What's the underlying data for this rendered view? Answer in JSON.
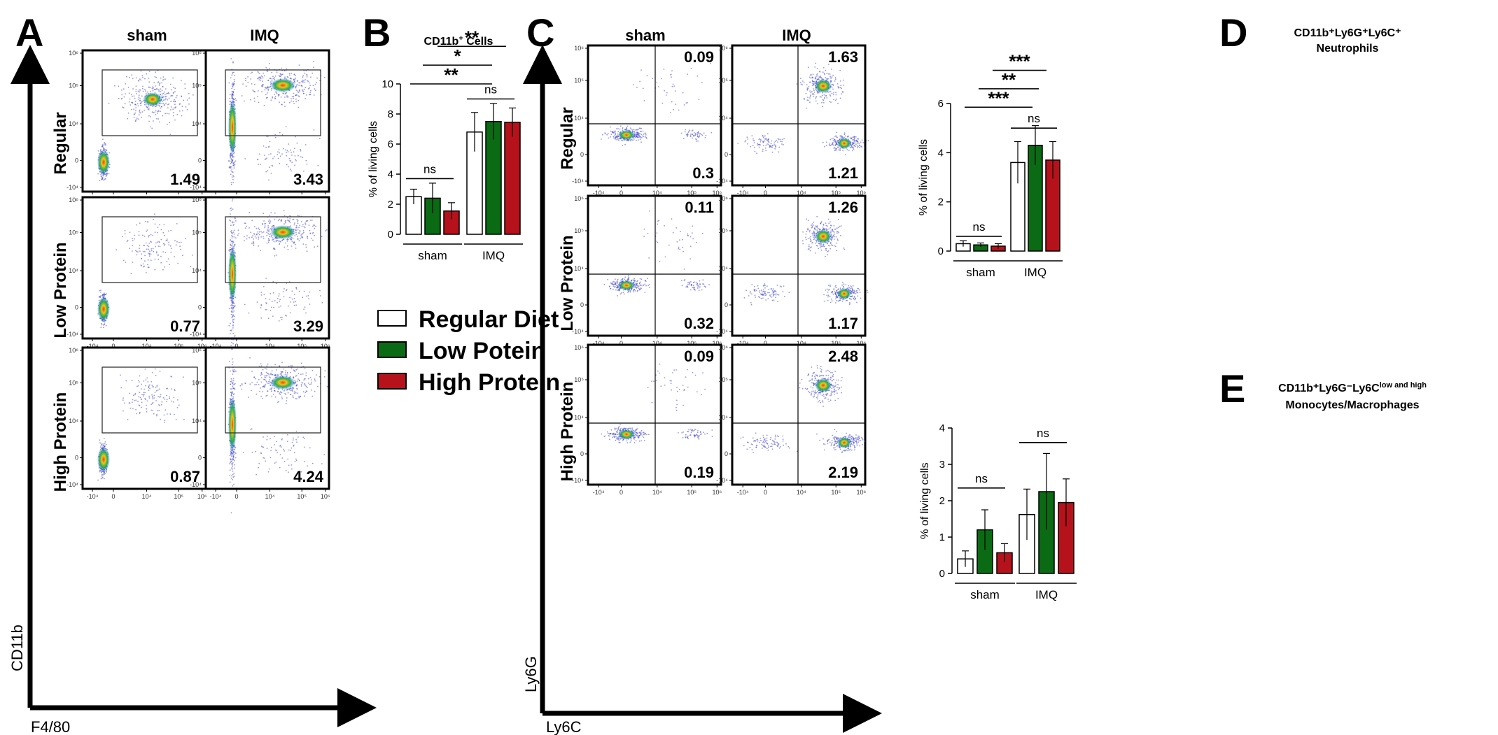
{
  "panels": {
    "A": {
      "letter": "A",
      "col_headers": [
        "sham",
        "IMQ"
      ],
      "row_labels": [
        "Regular",
        "Low Protein",
        "High Protein"
      ],
      "gate_values": [
        [
          "1.49",
          "3.43"
        ],
        [
          "0.77",
          "3.29"
        ],
        [
          "0.87",
          "4.24"
        ]
      ],
      "y_axis_label": "CD11b",
      "x_axis_label": "F4/80"
    },
    "B": {
      "letter": "B"
    },
    "C": {
      "letter": "C",
      "col_headers": [
        "sham",
        "IMQ"
      ],
      "row_labels": [
        "Regular",
        "Low Protein",
        "High Protein"
      ],
      "upper_values": [
        [
          "0.09",
          "1.63"
        ],
        [
          "0.11",
          "1.26"
        ],
        [
          "0.09",
          "2.48"
        ]
      ],
      "lower_values": [
        [
          "0.3",
          "1.21"
        ],
        [
          "0.32",
          "1.17"
        ],
        [
          "0.19",
          "2.19"
        ]
      ],
      "y_axis_label": "Ly6G",
      "x_axis_label": "Ly6C"
    },
    "D": {
      "letter": "D"
    },
    "E": {
      "letter": "E"
    }
  },
  "flow_ticks": {
    "x": [
      "-10⁴",
      "0",
      "10⁴",
      "10⁵",
      "10⁶"
    ],
    "y": [
      "10⁶",
      "10⁵",
      "10⁴",
      "0",
      "-10⁴"
    ]
  },
  "legend": {
    "items": [
      {
        "label": "Regular Diet",
        "color": "#ffffff"
      },
      {
        "label": "Low Potein",
        "color": "#0a6b14"
      },
      {
        "label": "High Protein",
        "color": "#b5121b"
      }
    ]
  },
  "chart_data": [
    {
      "panel": "B",
      "type": "bar",
      "title_main": "CD11b",
      "title_sup": "+",
      "title_rest": " Cells",
      "ylabel": "% of living cells",
      "ylim": [
        0,
        10
      ],
      "yticks": [
        "0",
        "2",
        "4",
        "6",
        "8",
        "10"
      ],
      "groups": [
        "sham",
        "IMQ"
      ],
      "series": [
        {
          "name": "Regular Diet",
          "color": "#ffffff",
          "values": [
            2.5,
            6.8
          ],
          "errors": [
            0.5,
            1.3
          ]
        },
        {
          "name": "Low Potein",
          "color": "#0a6b14",
          "values": [
            2.4,
            7.5
          ],
          "errors": [
            1.0,
            1.2
          ]
        },
        {
          "name": "High Protein",
          "color": "#b5121b",
          "values": [
            1.55,
            7.45
          ],
          "errors": [
            0.55,
            0.95
          ]
        }
      ],
      "annotations": [
        {
          "text": "ns",
          "kind": "ns",
          "level": 3.7
        },
        {
          "text": "ns",
          "kind": "ns",
          "level": 9.0
        },
        {
          "text": "**",
          "kind": "sig",
          "level": 10.0
        },
        {
          "text": "*",
          "kind": "sig",
          "level": 11.25
        },
        {
          "text": "**",
          "kind": "sig",
          "level": 12.5
        }
      ]
    },
    {
      "panel": "D",
      "type": "bar",
      "title_lines": [
        "CD11b⁺Ly6G⁺Ly6C⁺",
        "Neutrophils"
      ],
      "ylabel": "% of living cells",
      "ylim": [
        0,
        6
      ],
      "yticks": [
        "0",
        "2",
        "4",
        "6"
      ],
      "groups": [
        "sham",
        "IMQ"
      ],
      "series": [
        {
          "name": "Regular Diet",
          "color": "#ffffff",
          "values": [
            0.3,
            3.6
          ],
          "errors": [
            0.12,
            0.85
          ]
        },
        {
          "name": "Low Potein",
          "color": "#0a6b14",
          "values": [
            0.25,
            4.3
          ],
          "errors": [
            0.08,
            0.8
          ]
        },
        {
          "name": "High Protein",
          "color": "#b5121b",
          "values": [
            0.2,
            3.7
          ],
          "errors": [
            0.1,
            0.75
          ]
        }
      ],
      "annotations": [
        {
          "text": "ns",
          "kind": "ns",
          "level": 0.6
        },
        {
          "text": "ns",
          "kind": "ns",
          "level": 5.0
        },
        {
          "text": "***",
          "kind": "sig",
          "level": 5.85
        },
        {
          "text": "**",
          "kind": "sig",
          "level": 6.6
        },
        {
          "text": "***",
          "kind": "sig",
          "level": 7.35
        }
      ]
    },
    {
      "panel": "E",
      "type": "bar",
      "title_main": "CD11b⁺Ly6G⁻Ly6C",
      "title_sup": "low and high",
      "title_line2": "Monocytes/Macrophages",
      "ylabel": "% of living cells",
      "ylim": [
        0,
        4
      ],
      "yticks": [
        "0",
        "1",
        "2",
        "3",
        "4"
      ],
      "groups": [
        "sham",
        "IMQ"
      ],
      "series": [
        {
          "name": "Regular Diet",
          "color": "#ffffff",
          "values": [
            0.4,
            1.62
          ],
          "errors": [
            0.22,
            0.7
          ]
        },
        {
          "name": "Low Potein",
          "color": "#0a6b14",
          "values": [
            1.2,
            2.25
          ],
          "errors": [
            0.55,
            1.05
          ]
        },
        {
          "name": "High Protein",
          "color": "#b5121b",
          "values": [
            0.57,
            1.95
          ],
          "errors": [
            0.25,
            0.65
          ]
        }
      ],
      "annotations": [
        {
          "text": "ns",
          "kind": "ns",
          "level": 2.35
        },
        {
          "text": "ns",
          "kind": "ns",
          "level": 3.6
        }
      ]
    }
  ]
}
